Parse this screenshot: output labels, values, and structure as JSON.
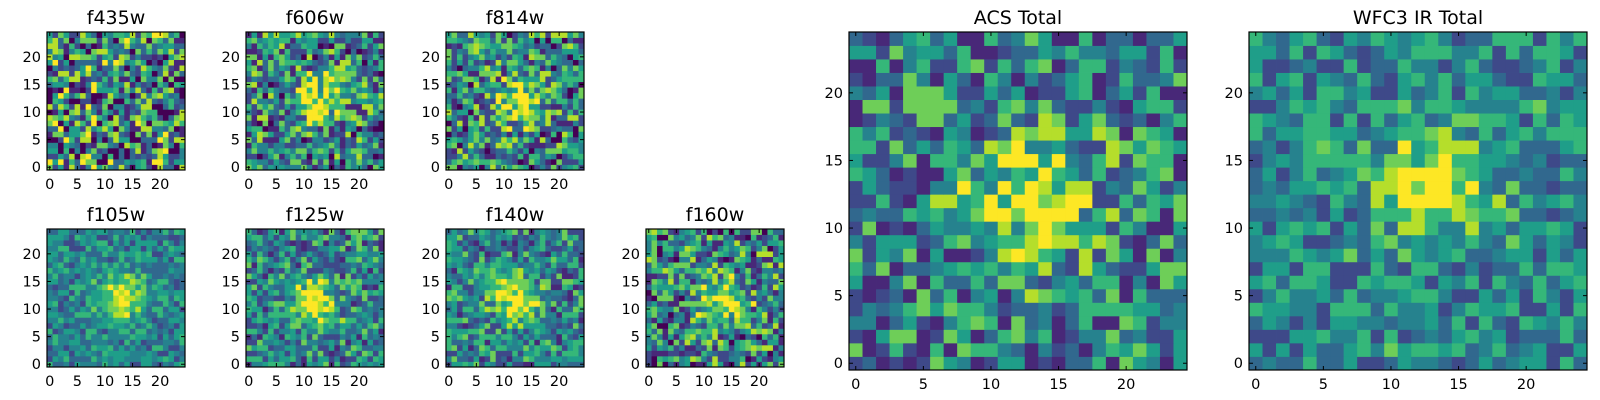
{
  "chart_data": [
    {
      "type": "heatmap",
      "title": "f435w",
      "grid_size": 25,
      "xlim": [
        -0.5,
        24.5
      ],
      "ylim": [
        -0.5,
        24.5
      ],
      "xticks": [
        0,
        5,
        10,
        15,
        20
      ],
      "yticks": [
        0,
        5,
        10,
        15,
        20
      ],
      "colormap": "viridis",
      "peak": null,
      "noise": 0.5
    },
    {
      "type": "heatmap",
      "title": "f606w",
      "grid_size": 25,
      "xlim": [
        -0.5,
        24.5
      ],
      "ylim": [
        -0.5,
        24.5
      ],
      "xticks": [
        0,
        5,
        10,
        15,
        20
      ],
      "yticks": [
        0,
        5,
        10,
        15,
        20
      ],
      "colormap": "viridis",
      "peak": [
        13,
        12
      ],
      "noise": 0.4
    },
    {
      "type": "heatmap",
      "title": "f814w",
      "grid_size": 25,
      "xlim": [
        -0.5,
        24.5
      ],
      "ylim": [
        -0.5,
        24.5
      ],
      "xticks": [
        0,
        5,
        10,
        15,
        20
      ],
      "yticks": [
        0,
        5,
        10,
        15,
        20
      ],
      "colormap": "viridis",
      "peak": [
        13,
        12
      ],
      "noise": 0.4
    },
    {
      "type": "heatmap",
      "title": "f105w",
      "grid_size": 25,
      "xlim": [
        -0.5,
        24.5
      ],
      "ylim": [
        -0.5,
        24.5
      ],
      "xticks": [
        0,
        5,
        10,
        15,
        20
      ],
      "yticks": [
        0,
        5,
        10,
        15,
        20
      ],
      "colormap": "viridis",
      "peak": [
        13,
        12
      ],
      "noise": 0.2
    },
    {
      "type": "heatmap",
      "title": "f125w",
      "grid_size": 25,
      "xlim": [
        -0.5,
        24.5
      ],
      "ylim": [
        -0.5,
        24.5
      ],
      "xticks": [
        0,
        5,
        10,
        15,
        20
      ],
      "yticks": [
        0,
        5,
        10,
        15,
        20
      ],
      "colormap": "viridis",
      "peak": [
        12,
        11
      ],
      "noise": 0.3
    },
    {
      "type": "heatmap",
      "title": "f140w",
      "grid_size": 25,
      "xlim": [
        -0.5,
        24.5
      ],
      "ylim": [
        -0.5,
        24.5
      ],
      "xticks": [
        0,
        5,
        10,
        15,
        20
      ],
      "yticks": [
        0,
        5,
        10,
        15,
        20
      ],
      "colormap": "viridis",
      "peak": [
        12,
        12
      ],
      "noise": 0.3
    },
    {
      "type": "heatmap",
      "title": "f160w",
      "grid_size": 25,
      "xlim": [
        -0.5,
        24.5
      ],
      "ylim": [
        -0.5,
        24.5
      ],
      "xticks": [
        0,
        5,
        10,
        15,
        20
      ],
      "yticks": [
        0,
        5,
        10,
        15,
        20
      ],
      "colormap": "viridis",
      "peak": [
        13,
        12
      ],
      "noise": 0.4
    },
    {
      "type": "heatmap",
      "title": "ACS Total",
      "grid_size": 25,
      "xlim": [
        -0.5,
        24.5
      ],
      "ylim": [
        -0.5,
        24.5
      ],
      "xticks": [
        0,
        5,
        10,
        15,
        20
      ],
      "yticks": [
        0,
        5,
        10,
        15,
        20
      ],
      "colormap": "viridis",
      "peak": [
        13,
        12
      ],
      "noise": 0.35
    },
    {
      "type": "heatmap",
      "title": "WFC3 IR Total",
      "grid_size": 25,
      "xlim": [
        -0.5,
        24.5
      ],
      "ylim": [
        -0.5,
        24.5
      ],
      "xticks": [
        0,
        5,
        10,
        15,
        20
      ],
      "yticks": [
        0,
        5,
        10,
        15,
        20
      ],
      "colormap": "viridis",
      "peak": [
        13,
        13
      ],
      "noise": 0.25
    }
  ],
  "colors": {
    "viridis": [
      "#440154",
      "#482878",
      "#3e4989",
      "#31688e",
      "#26828e",
      "#1f9e89",
      "#35b779",
      "#6ece58",
      "#b5de2b",
      "#fde725"
    ]
  }
}
